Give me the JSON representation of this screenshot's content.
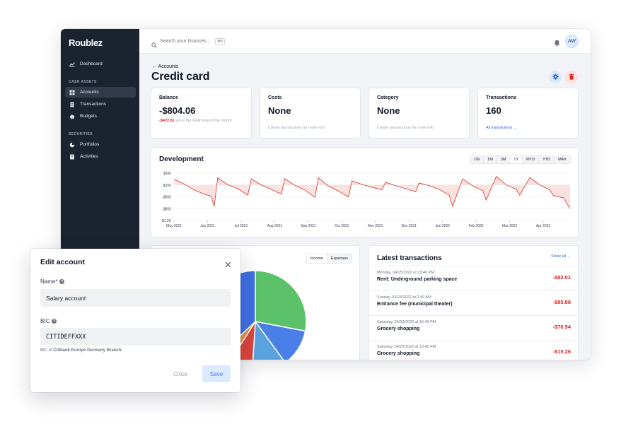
{
  "app": {
    "logo": "Roublez",
    "search": {
      "placeholder": "Search your finances...",
      "shortcut": "⌘K"
    },
    "avatar_initials": "AW"
  },
  "sidebar": {
    "items": [
      {
        "label": "Dashboard",
        "icon": "chart-icon"
      },
      {
        "label": "Accounts",
        "icon": "grid-icon",
        "active": true
      },
      {
        "label": "Transactions",
        "icon": "document-icon"
      },
      {
        "label": "Budgets",
        "icon": "piggy-bank-icon"
      },
      {
        "label": "Portfolios",
        "icon": "pie-icon"
      },
      {
        "label": "Activities",
        "icon": "ledger-icon"
      }
    ],
    "sections": {
      "cash_assets": "CASH ASSETS",
      "securities": "SECURITIES"
    }
  },
  "page": {
    "breadcrumb": "← Accounts",
    "title": "Credit card"
  },
  "stats": {
    "balance": {
      "label": "Balance",
      "value": "-$804.06",
      "change": "-$422.61",
      "change_text": " since the beginning of the month"
    },
    "costs": {
      "label": "Costs",
      "value": "None",
      "sub": "Create transactions for more info"
    },
    "category": {
      "label": "Category",
      "value": "None",
      "sub": "Create transactions for more info"
    },
    "transactions": {
      "label": "Transactions",
      "value": "160",
      "link": "All transactions →"
    }
  },
  "development": {
    "title": "Development",
    "ranges": [
      "1W",
      "1M",
      "3M",
      "1Y",
      "MTD",
      "YTD",
      "MAX"
    ],
    "active_range": "1Y"
  },
  "chart_data": {
    "type": "line",
    "title": "Development",
    "ytick_labels": [
      "$200",
      "-$150",
      "-$500",
      "-$850",
      "-$1.2K"
    ],
    "yticks": [
      200,
      -150,
      -500,
      -850,
      -1200
    ],
    "ylim": [
      -1200,
      200
    ],
    "xtick_labels": [
      "May 2021",
      "Jun 2021",
      "Jul 2021",
      "Aug 2021",
      "Sep 2021",
      "Oct 2021",
      "Nov 2021",
      "Dec 2021",
      "Jan 2022",
      "Feb 2022",
      "Mar 2022",
      "Apr 2022"
    ],
    "x": [
      0,
      0.3,
      0.6,
      0.9,
      1.1,
      1.2,
      1.3,
      1.6,
      1.9,
      2.2,
      2.3,
      2.6,
      2.9,
      3.2,
      3.3,
      3.6,
      3.9,
      4.2,
      4.3,
      4.6,
      4.9,
      5.2,
      5.3,
      5.6,
      5.9,
      6.2,
      6.3,
      6.6,
      6.9,
      7.2,
      7.3,
      7.6,
      7.9,
      8.2,
      8.3,
      8.6,
      8.9,
      9.2,
      9.3,
      9.6,
      9.9,
      10.2,
      10.3,
      10.6,
      10.9,
      11.2,
      11.3,
      11.6,
      11.8
    ],
    "values": [
      20,
      -120,
      -300,
      -420,
      -480,
      -780,
      60,
      -140,
      -260,
      -450,
      30,
      -150,
      -280,
      -420,
      40,
      -160,
      -300,
      -520,
      60,
      -180,
      -330,
      -500,
      -30,
      -130,
      -220,
      -290,
      -70,
      -170,
      -260,
      -350,
      -90,
      -170,
      -280,
      -450,
      -780,
      30,
      -180,
      -320,
      -600,
      100,
      -150,
      -280,
      -450,
      70,
      -150,
      -300,
      -460,
      -530,
      -850
    ]
  },
  "allocation": {
    "toggle": [
      "Income",
      "Expenses"
    ],
    "active": "Income"
  },
  "pie_data": {
    "type": "pie",
    "values": [
      28,
      12,
      11,
      8,
      4,
      37
    ],
    "colors": [
      "#5cc26a",
      "#4a7fe8",
      "#5aa3e0",
      "#d8463c",
      "#e88a3c",
      "#3f6fe0"
    ]
  },
  "latest": {
    "title": "Latest transactions",
    "show_all": "Show all →",
    "rows": [
      {
        "date": "Monday, 04/25/2022 at 23:40 PM",
        "name": "Rent: Underground parking space",
        "amount": "-$82.01"
      },
      {
        "date": "Sunday, 04/24/2022 at 2:40 AM",
        "name": "Entrance fee (municipal theater)",
        "amount": "-$85.88"
      },
      {
        "date": "Saturday, 04/23/2022 at 16:40 PM",
        "name": "Grocery shopping",
        "amount": "-$76.94"
      },
      {
        "date": "Saturday, 04/23/2022 at 13:40 PM",
        "name": "Grocery shopping",
        "amount": "-$15.26"
      }
    ]
  },
  "modal": {
    "title": "Edit account",
    "name_label": "Name*",
    "name_value": "Salary account",
    "bic_label": "BIC",
    "bic_value": "CITIDEFFXXX",
    "bic_hint_prefix": "BIC of ",
    "bic_hint_bank": "Citibank Europe Germany Branch",
    "close": "Close",
    "save": "Save"
  },
  "colors": {
    "sidebar": "#1b2331",
    "accent": "#2563eb",
    "negative": "#dc2626",
    "chart_line": "#d9453b"
  }
}
